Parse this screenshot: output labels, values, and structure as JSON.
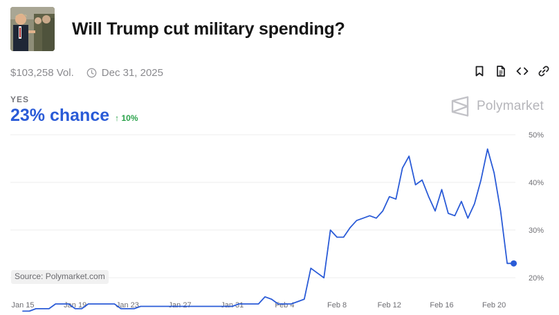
{
  "market": {
    "title": "Will Trump cut military spending?",
    "volume": "$103,258 Vol.",
    "end_date": "Dec 31, 2025",
    "outcome_label": "YES",
    "chance_text": "23% chance",
    "change_text": "↑ 10%"
  },
  "brand": {
    "name": "Polymarket"
  },
  "actions": [
    {
      "name": "bookmark"
    },
    {
      "name": "document"
    },
    {
      "name": "embed"
    },
    {
      "name": "link"
    }
  ],
  "source_text": "Source: Polymarket.com",
  "colors": {
    "line": "#2a5bd7",
    "chance": "#2a5bd7",
    "up": "#2ba34b",
    "grid": "#eeeeee",
    "axis_text": "#6e6e73"
  },
  "chart_data": {
    "type": "line",
    "title": "",
    "xlabel": "",
    "ylabel": "",
    "ylim": [
      17.4,
      50
    ],
    "y_ticks": [
      20,
      30,
      40,
      50
    ],
    "y_tick_labels": [
      "20%",
      "30%",
      "40%",
      "50%"
    ],
    "x_tick_labels": [
      "Jan 15",
      "Jan 19",
      "Jan 23",
      "Jan 27",
      "Jan 31",
      "Feb 4",
      "Feb 8",
      "Feb 12",
      "Feb 16",
      "Feb 20"
    ],
    "x_tick_days": [
      0,
      4,
      8,
      12,
      16,
      20,
      24,
      28,
      32,
      36
    ],
    "x_range": [
      0,
      38
    ],
    "series": [
      {
        "name": "YES",
        "x": [
          0,
          0.5,
          1,
          1.5,
          2,
          2.5,
          3,
          3.5,
          4,
          4.5,
          5,
          5.5,
          6,
          6.5,
          7,
          7.5,
          8,
          8.5,
          9,
          9.5,
          10,
          10.5,
          11,
          11.5,
          12,
          12.5,
          13,
          13.5,
          14,
          14.5,
          15,
          15.5,
          16,
          16.5,
          17,
          17.5,
          18,
          18.5,
          19,
          19.5,
          20,
          20.5,
          21,
          21.5,
          22,
          22.5,
          23,
          23.5,
          24,
          24.5,
          25,
          25.5,
          26,
          26.5,
          27,
          27.5,
          28,
          28.5,
          29,
          29.5,
          30,
          30.5,
          31,
          31.5,
          32,
          32.5,
          33,
          33.5,
          34,
          34.5,
          35,
          35.5,
          36,
          36.5,
          37,
          37.5
        ],
        "values": [
          13.0,
          13.0,
          13.5,
          13.5,
          13.5,
          14.5,
          14.5,
          14.5,
          13.5,
          13.5,
          14.5,
          14.5,
          14.5,
          14.5,
          14.5,
          13.5,
          13.5,
          13.5,
          14.0,
          14.0,
          14.0,
          14.0,
          14.0,
          14.0,
          14.0,
          14.0,
          14.0,
          14.0,
          14.0,
          14.0,
          14.0,
          14.0,
          14.0,
          14.5,
          14.5,
          14.5,
          14.5,
          16.0,
          15.5,
          14.5,
          14.5,
          14.5,
          15.0,
          15.5,
          22.0,
          21.0,
          20.0,
          30.0,
          28.5,
          28.5,
          30.5,
          32.0,
          32.5,
          33.0,
          32.5,
          34.0,
          37.0,
          36.5,
          43.0,
          45.5,
          39.5,
          40.5,
          37.0,
          34.0,
          38.5,
          33.5,
          33.0,
          36.0,
          32.5,
          35.5,
          40.5,
          47.0,
          42.0,
          34.0,
          23.0,
          23.0
        ]
      }
    ],
    "last_point": {
      "x": 37.5,
      "y": 23
    }
  }
}
